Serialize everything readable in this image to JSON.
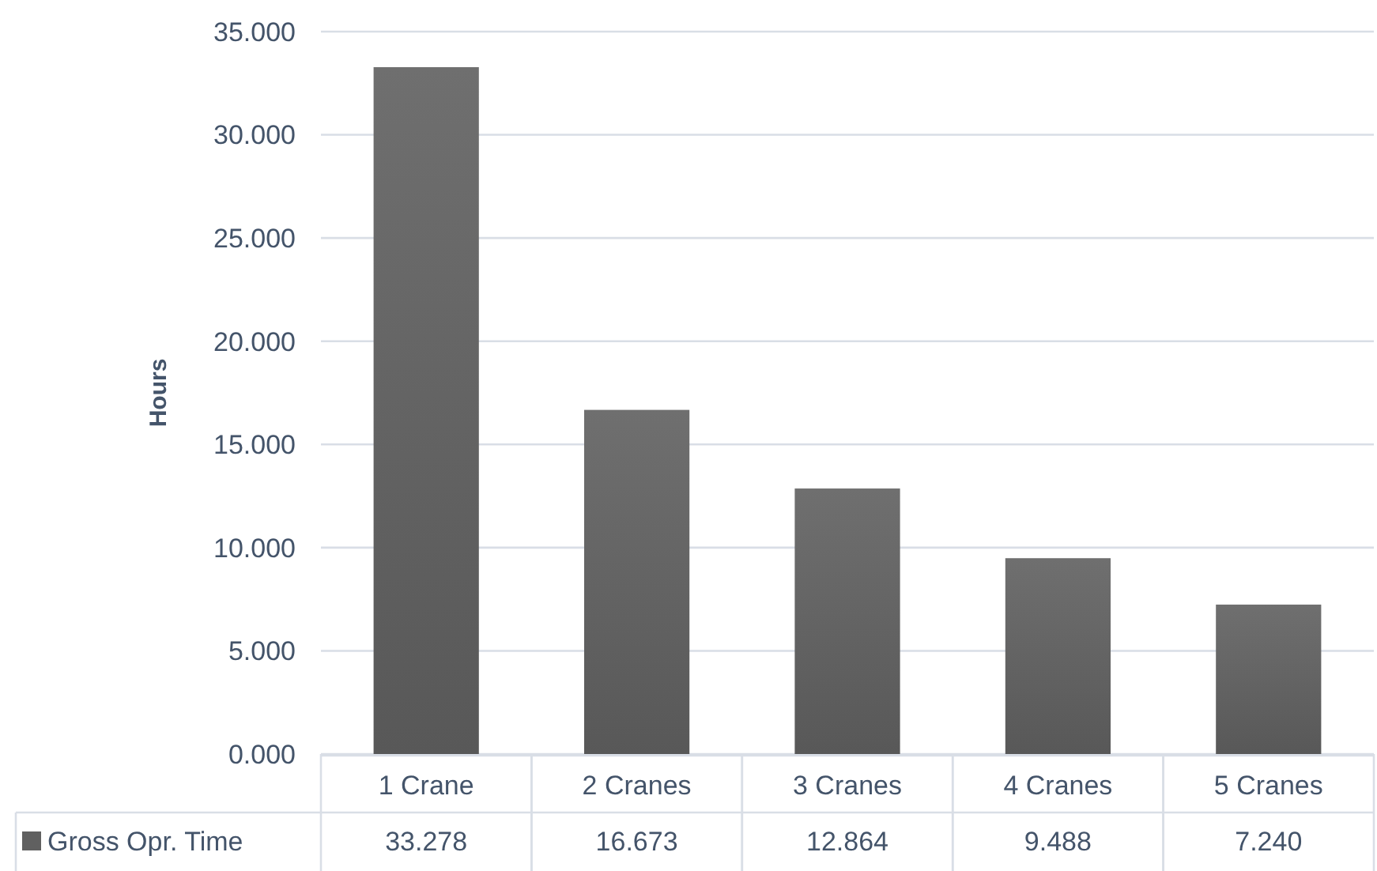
{
  "chart_data": {
    "type": "bar",
    "ylabel": "Hours",
    "categories": [
      "1 Crane",
      "2 Cranes",
      "3 Cranes",
      "4 Cranes",
      "5 Cranes"
    ],
    "series": [
      {
        "name": "Gross Opr. Time",
        "color": "#606060",
        "values": [
          33.278,
          16.673,
          12.864,
          9.488,
          7.24
        ],
        "value_labels": [
          "33.278",
          "16.673",
          "12.864",
          "9.488",
          "7.240"
        ]
      }
    ],
    "ylim": [
      0,
      35
    ],
    "yticks": [
      {
        "value": 0,
        "label": "0.000"
      },
      {
        "value": 5,
        "label": "5.000"
      },
      {
        "value": 10,
        "label": "10.000"
      },
      {
        "value": 15,
        "label": "15.000"
      },
      {
        "value": 20,
        "label": "20.000"
      },
      {
        "value": 25,
        "label": "25.000"
      },
      {
        "value": 30,
        "label": "30.000"
      },
      {
        "value": 35,
        "label": "35.000"
      }
    ],
    "grid": "y",
    "legend": "bottom"
  }
}
